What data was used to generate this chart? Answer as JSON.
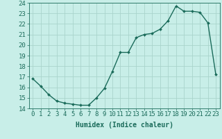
{
  "x": [
    0,
    1,
    2,
    3,
    4,
    5,
    6,
    7,
    8,
    9,
    10,
    11,
    12,
    13,
    14,
    15,
    16,
    17,
    18,
    19,
    20,
    21,
    22,
    23
  ],
  "y": [
    16.8,
    16.1,
    15.3,
    14.7,
    14.5,
    14.4,
    14.3,
    14.3,
    15.0,
    15.9,
    17.5,
    19.3,
    19.3,
    20.7,
    21.0,
    21.1,
    21.5,
    22.3,
    23.7,
    23.2,
    23.2,
    23.1,
    22.1,
    17.2
  ],
  "xlabel": "Humidex (Indice chaleur)",
  "xlim": [
    -0.5,
    23.5
  ],
  "ylim": [
    14,
    24
  ],
  "yticks": [
    14,
    15,
    16,
    17,
    18,
    19,
    20,
    21,
    22,
    23,
    24
  ],
  "xticks": [
    0,
    1,
    2,
    3,
    4,
    5,
    6,
    7,
    8,
    9,
    10,
    11,
    12,
    13,
    14,
    15,
    16,
    17,
    18,
    19,
    20,
    21,
    22,
    23
  ],
  "line_color": "#1a6b5a",
  "marker_color": "#1a6b5a",
  "bg_color": "#c8eee8",
  "grid_color": "#aad4cc",
  "tick_label_color": "#1a6b5a",
  "xlabel_color": "#1a6b5a",
  "xlabel_fontsize": 7,
  "tick_fontsize": 6.5
}
